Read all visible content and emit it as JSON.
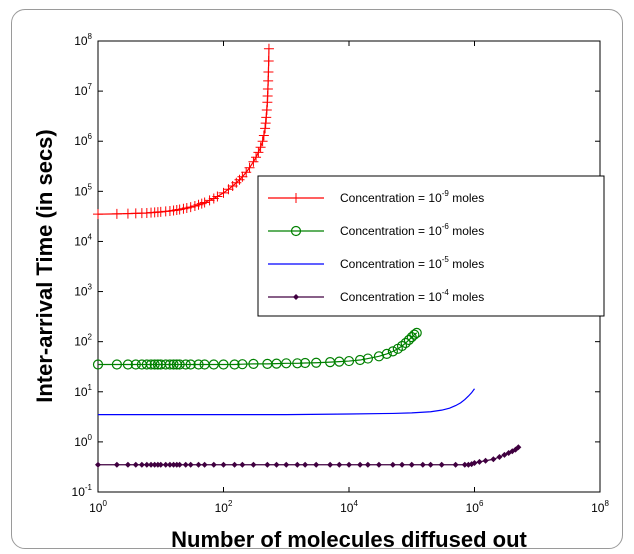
{
  "chart_data": {
    "type": "line",
    "title": "",
    "xlabel": "Number of molecules diffused out",
    "ylabel": "Inter-arrival Time (in secs)",
    "xscale": "log",
    "yscale": "log",
    "xlim": [
      1,
      100000000
    ],
    "ylim": [
      0.1,
      100000000
    ],
    "x_ticks": [
      {
        "base": "10",
        "exp": "0"
      },
      {
        "base": "10",
        "exp": "2"
      },
      {
        "base": "10",
        "exp": "4"
      },
      {
        "base": "10",
        "exp": "6"
      },
      {
        "base": "10",
        "exp": "8"
      }
    ],
    "y_ticks": [
      {
        "base": "10",
        "exp": "-1"
      },
      {
        "base": "10",
        "exp": "0"
      },
      {
        "base": "10",
        "exp": "1"
      },
      {
        "base": "10",
        "exp": "2"
      },
      {
        "base": "10",
        "exp": "3"
      },
      {
        "base": "10",
        "exp": "4"
      },
      {
        "base": "10",
        "exp": "5"
      },
      {
        "base": "10",
        "exp": "6"
      },
      {
        "base": "10",
        "exp": "7"
      },
      {
        "base": "10",
        "exp": "8"
      }
    ],
    "grid": false,
    "legend_position": "center-right",
    "series": [
      {
        "label_prefix": "Concentration = ",
        "label_base": "10",
        "label_exp": "-9",
        "label_suffix": " moles",
        "color": "#ff0000",
        "marker": "plus",
        "marker_step": 1,
        "x": [
          1,
          2,
          3,
          4,
          5,
          6,
          7,
          8,
          9,
          10,
          12,
          14,
          16,
          18,
          20,
          23,
          26,
          30,
          35,
          40,
          45,
          50,
          60,
          70,
          80,
          100,
          120,
          140,
          160,
          180,
          200,
          230,
          260,
          300,
          330,
          360,
          390,
          420,
          440,
          460,
          470,
          480,
          490,
          500,
          505,
          510,
          515,
          520,
          525,
          530
        ],
        "y": [
          35000,
          35500,
          36000,
          36300,
          36700,
          37000,
          37500,
          38000,
          38500,
          39000,
          39800,
          40500,
          41500,
          42500,
          43500,
          45000,
          46500,
          48500,
          51000,
          54000,
          57000,
          60000,
          66000,
          72000,
          79000,
          93000,
          110000,
          128000,
          148000,
          170000,
          195000,
          240000,
          295000,
          390000,
          480000,
          600000,
          760000,
          1000000,
          1300000,
          1800000,
          2300000,
          3000000,
          4200000,
          6000000,
          8000000,
          11000000,
          16000000,
          24000000,
          40000000,
          70000000
        ]
      },
      {
        "label_prefix": "Concentration = ",
        "label_base": "10",
        "label_exp": "-6",
        "label_suffix": " moles",
        "color": "#008000",
        "marker": "circle",
        "marker_step": 1,
        "x": [
          1,
          2,
          3,
          4,
          5,
          6,
          7,
          8,
          9,
          10,
          12,
          14,
          16,
          18,
          20,
          25,
          30,
          40,
          50,
          70,
          100,
          150,
          200,
          300,
          500,
          700,
          1000,
          1500,
          2000,
          3000,
          5000,
          7000,
          10000,
          15000,
          20000,
          30000,
          40000,
          50000,
          60000,
          70000,
          80000,
          90000,
          100000,
          110000,
          120000
        ],
        "y": [
          35,
          35,
          35,
          35,
          35,
          35,
          35,
          35,
          35,
          35,
          35,
          35,
          35,
          35,
          35,
          35,
          35,
          35,
          35,
          35,
          35,
          35,
          35.5,
          36,
          36,
          36.5,
          37,
          37,
          37.5,
          38,
          39,
          40,
          41,
          43,
          46,
          51,
          57,
          64,
          72,
          82,
          94,
          108,
          123,
          138,
          150
        ]
      },
      {
        "label_prefix": "Concentration = ",
        "label_base": "10",
        "label_exp": "-5",
        "label_suffix": " moles",
        "color": "#0000ff",
        "marker": "none",
        "marker_step": 0,
        "x": [
          1,
          10,
          100,
          1000,
          10000,
          50000,
          100000,
          200000,
          300000,
          400000,
          500000,
          600000,
          700000,
          800000,
          900000,
          1000000
        ],
        "y": [
          3.5,
          3.5,
          3.5,
          3.5,
          3.6,
          3.7,
          3.8,
          4.0,
          4.3,
          4.7,
          5.3,
          6.0,
          7.0,
          8.2,
          9.6,
          11.5
        ]
      },
      {
        "label_prefix": "Concentration = ",
        "label_base": "10",
        "label_exp": "-4",
        "label_suffix": " moles",
        "color": "#400040",
        "marker": "dot",
        "marker_step": 1,
        "x": [
          1,
          2,
          3,
          4,
          5,
          6,
          7,
          8,
          9,
          10,
          12,
          14,
          16,
          18,
          20,
          25,
          30,
          40,
          50,
          70,
          100,
          150,
          200,
          300,
          500,
          700,
          1000,
          1500,
          2000,
          3000,
          5000,
          7000,
          10000,
          15000,
          20000,
          30000,
          50000,
          70000,
          100000,
          150000,
          200000,
          300000,
          500000,
          700000,
          800000,
          900000,
          1000000,
          1200000,
          1500000,
          2000000,
          2500000,
          3000000,
          3500000,
          4000000,
          4500000,
          5000000
        ],
        "y": [
          0.35,
          0.35,
          0.35,
          0.35,
          0.35,
          0.35,
          0.35,
          0.35,
          0.35,
          0.35,
          0.35,
          0.35,
          0.35,
          0.35,
          0.35,
          0.35,
          0.35,
          0.35,
          0.35,
          0.35,
          0.35,
          0.35,
          0.35,
          0.35,
          0.35,
          0.35,
          0.35,
          0.35,
          0.35,
          0.35,
          0.35,
          0.35,
          0.35,
          0.35,
          0.35,
          0.35,
          0.35,
          0.35,
          0.35,
          0.35,
          0.35,
          0.35,
          0.35,
          0.35,
          0.35,
          0.36,
          0.38,
          0.4,
          0.42,
          0.45,
          0.5,
          0.55,
          0.6,
          0.65,
          0.7,
          0.78
        ]
      }
    ]
  }
}
